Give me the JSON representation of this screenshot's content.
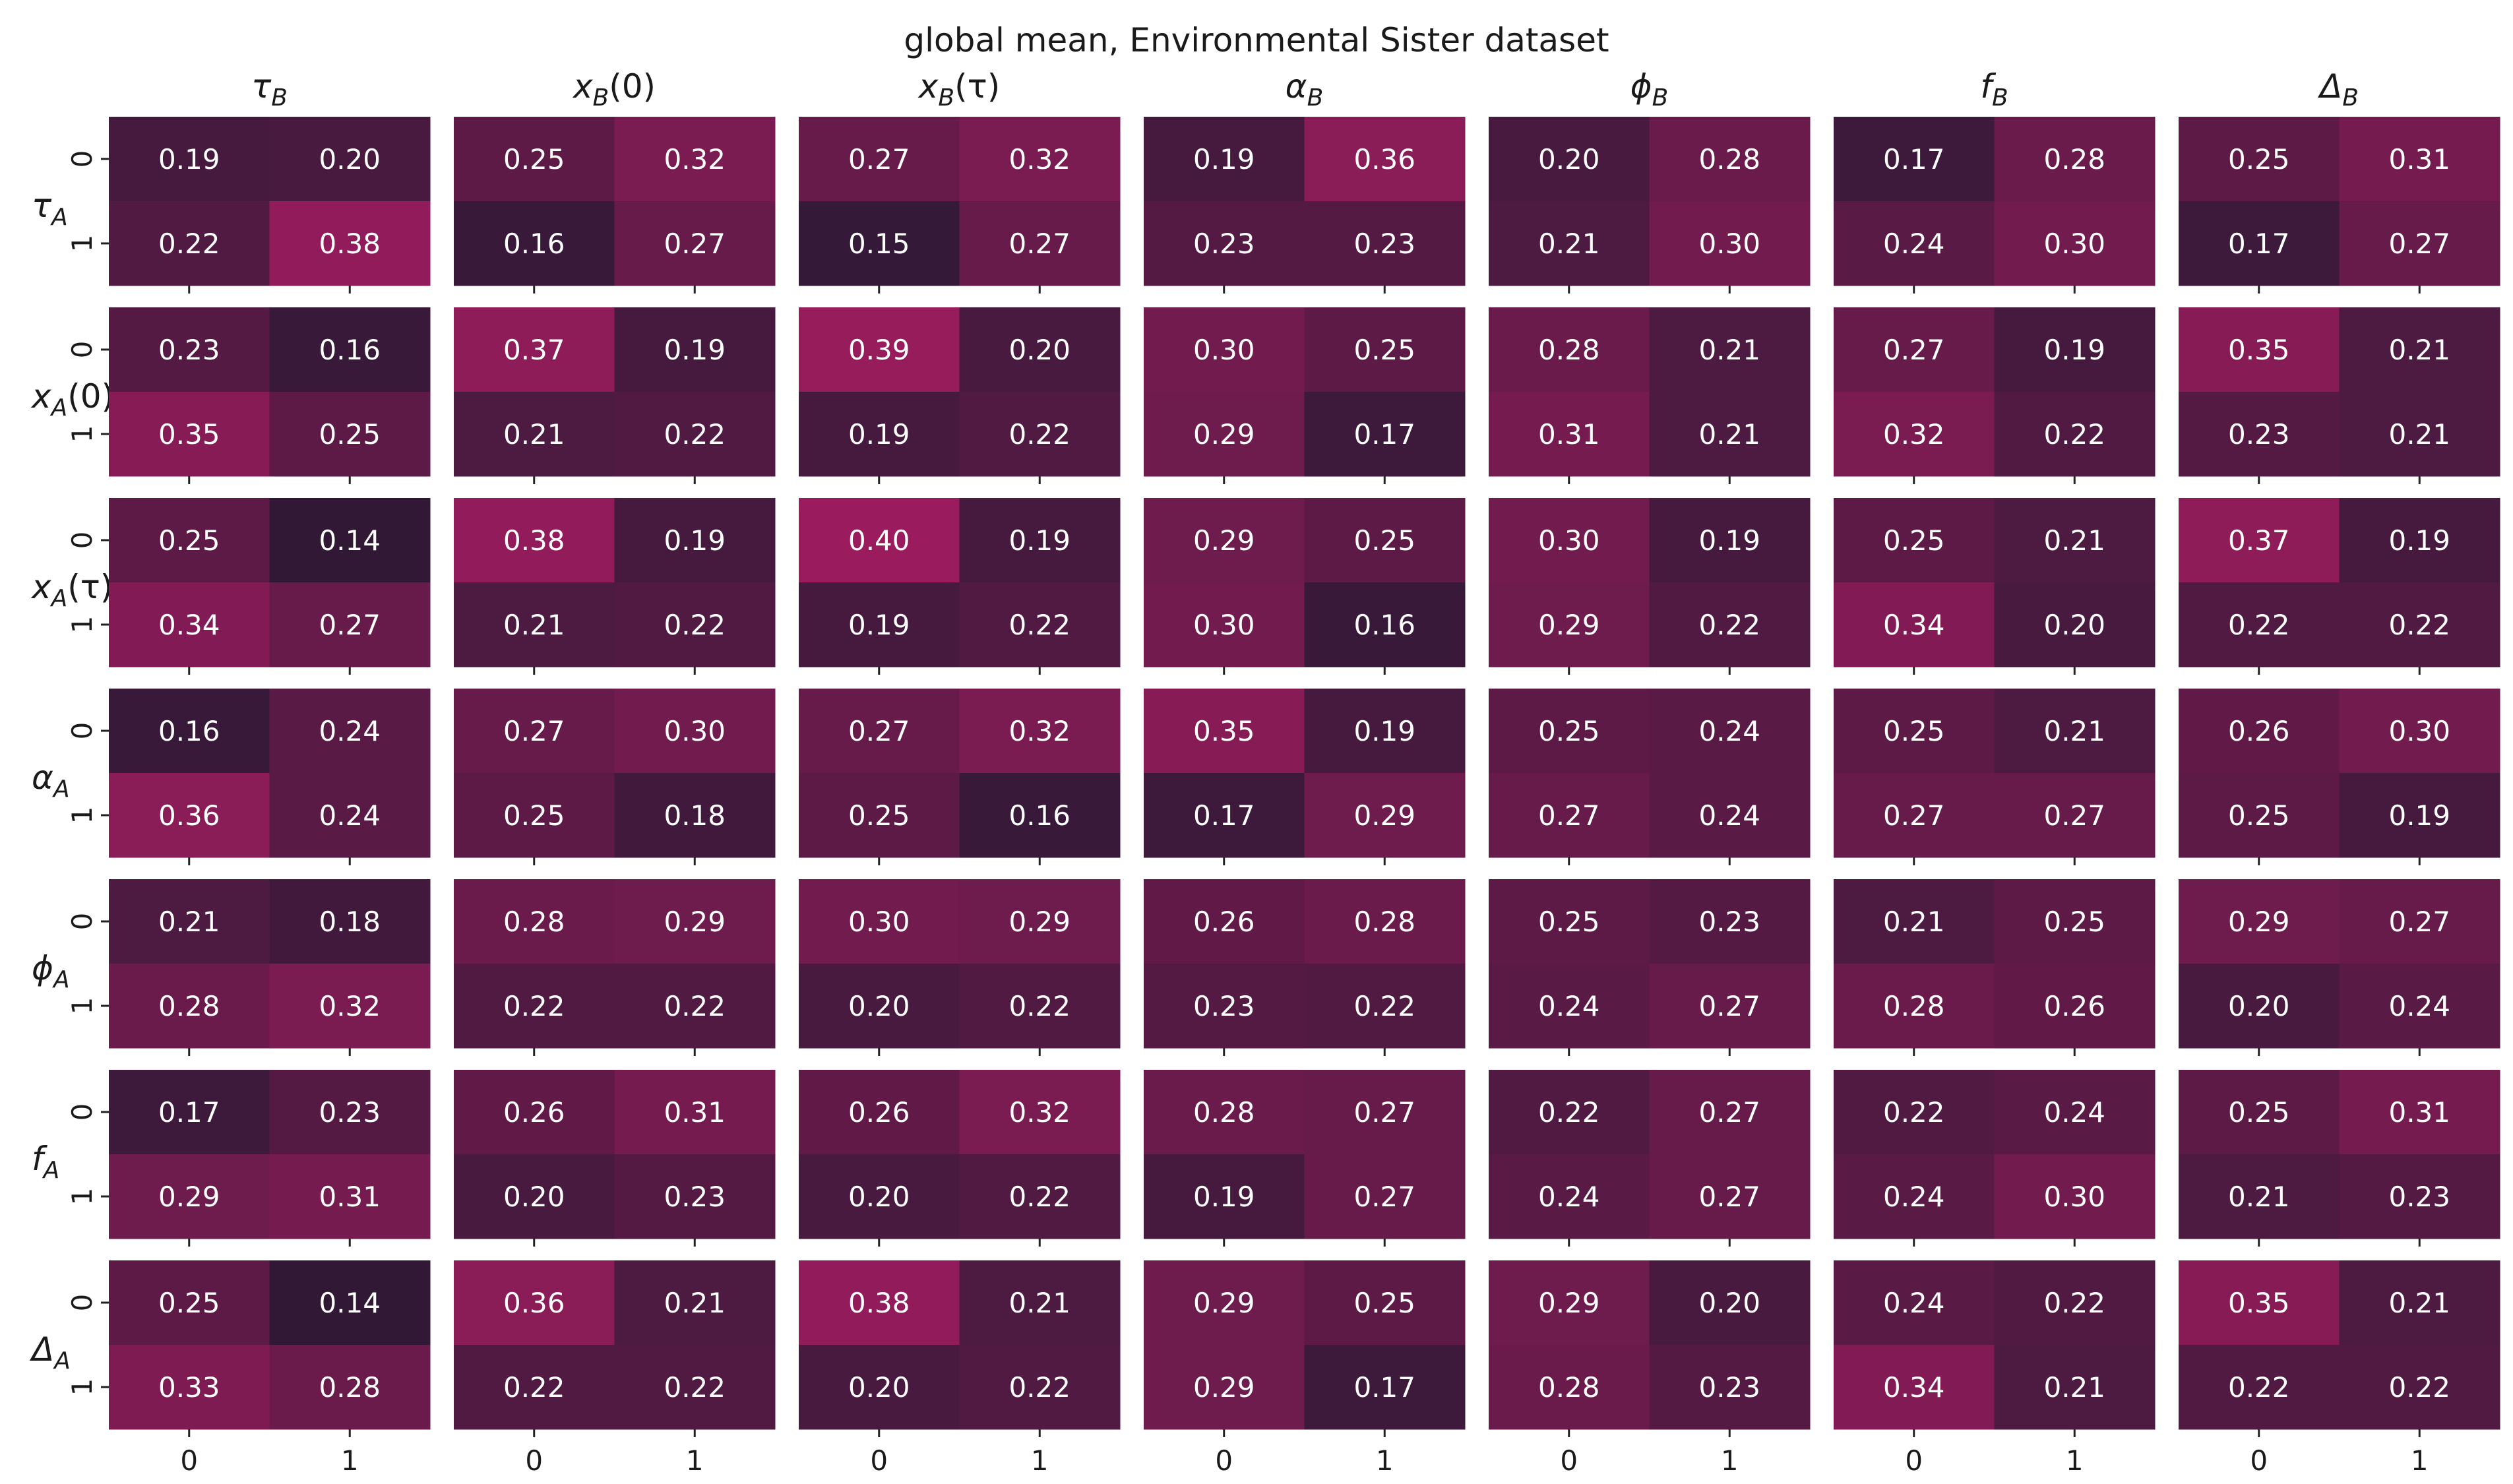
{
  "chart_data": {
    "type": "heatmap",
    "title": "global mean, Environmental Sister dataset",
    "col_titles": [
      "τ",
      "x",
      "x",
      "α",
      "ϕ",
      "f",
      "Δ"
    ],
    "col_title_sub": [
      "B",
      "B",
      "B",
      "B",
      "B",
      "B",
      "B"
    ],
    "col_title_suffix": [
      "",
      "(0)",
      "(τ)",
      "",
      "",
      "",
      ""
    ],
    "row_titles": [
      "τ",
      "x",
      "x",
      "α",
      "ϕ",
      "f",
      "Δ"
    ],
    "row_title_sub": [
      "A",
      "A",
      "A",
      "A",
      "A",
      "A",
      "A"
    ],
    "row_title_suffix": [
      "",
      "(0)",
      "(τ)",
      "",
      "",
      "",
      ""
    ],
    "x_tick_labels": [
      "0",
      "1"
    ],
    "y_tick_labels": [
      "0",
      "1"
    ],
    "value_range": [
      0.14,
      0.4
    ],
    "colormap": {
      "low": "#311936",
      "high": "#9a1c5e"
    },
    "grids": [
      [
        [
          [
            0.19,
            0.2
          ],
          [
            0.22,
            0.38
          ]
        ],
        [
          [
            0.25,
            0.32
          ],
          [
            0.16,
            0.27
          ]
        ],
        [
          [
            0.27,
            0.32
          ],
          [
            0.15,
            0.27
          ]
        ],
        [
          [
            0.19,
            0.36
          ],
          [
            0.23,
            0.23
          ]
        ],
        [
          [
            0.2,
            0.28
          ],
          [
            0.21,
            0.3
          ]
        ],
        [
          [
            0.17,
            0.28
          ],
          [
            0.24,
            0.3
          ]
        ],
        [
          [
            0.25,
            0.31
          ],
          [
            0.17,
            0.27
          ]
        ]
      ],
      [
        [
          [
            0.23,
            0.16
          ],
          [
            0.35,
            0.25
          ]
        ],
        [
          [
            0.37,
            0.19
          ],
          [
            0.21,
            0.22
          ]
        ],
        [
          [
            0.39,
            0.2
          ],
          [
            0.19,
            0.22
          ]
        ],
        [
          [
            0.3,
            0.25
          ],
          [
            0.29,
            0.17
          ]
        ],
        [
          [
            0.28,
            0.21
          ],
          [
            0.31,
            0.21
          ]
        ],
        [
          [
            0.27,
            0.19
          ],
          [
            0.32,
            0.22
          ]
        ],
        [
          [
            0.35,
            0.21
          ],
          [
            0.23,
            0.21
          ]
        ]
      ],
      [
        [
          [
            0.25,
            0.14
          ],
          [
            0.34,
            0.27
          ]
        ],
        [
          [
            0.38,
            0.19
          ],
          [
            0.21,
            0.22
          ]
        ],
        [
          [
            0.4,
            0.19
          ],
          [
            0.19,
            0.22
          ]
        ],
        [
          [
            0.29,
            0.25
          ],
          [
            0.3,
            0.16
          ]
        ],
        [
          [
            0.3,
            0.19
          ],
          [
            0.29,
            0.22
          ]
        ],
        [
          [
            0.25,
            0.21
          ],
          [
            0.34,
            0.2
          ]
        ],
        [
          [
            0.37,
            0.19
          ],
          [
            0.22,
            0.22
          ]
        ]
      ],
      [
        [
          [
            0.16,
            0.24
          ],
          [
            0.36,
            0.24
          ]
        ],
        [
          [
            0.27,
            0.3
          ],
          [
            0.25,
            0.18
          ]
        ],
        [
          [
            0.27,
            0.32
          ],
          [
            0.25,
            0.16
          ]
        ],
        [
          [
            0.35,
            0.19
          ],
          [
            0.17,
            0.29
          ]
        ],
        [
          [
            0.25,
            0.24
          ],
          [
            0.27,
            0.24
          ]
        ],
        [
          [
            0.25,
            0.21
          ],
          [
            0.27,
            0.27
          ]
        ],
        [
          [
            0.26,
            0.3
          ],
          [
            0.25,
            0.19
          ]
        ]
      ],
      [
        [
          [
            0.21,
            0.18
          ],
          [
            0.28,
            0.32
          ]
        ],
        [
          [
            0.28,
            0.29
          ],
          [
            0.22,
            0.22
          ]
        ],
        [
          [
            0.3,
            0.29
          ],
          [
            0.2,
            0.22
          ]
        ],
        [
          [
            0.26,
            0.28
          ],
          [
            0.23,
            0.22
          ]
        ],
        [
          [
            0.25,
            0.23
          ],
          [
            0.24,
            0.27
          ]
        ],
        [
          [
            0.21,
            0.25
          ],
          [
            0.28,
            0.26
          ]
        ],
        [
          [
            0.29,
            0.27
          ],
          [
            0.2,
            0.24
          ]
        ]
      ],
      [
        [
          [
            0.17,
            0.23
          ],
          [
            0.29,
            0.31
          ]
        ],
        [
          [
            0.26,
            0.31
          ],
          [
            0.2,
            0.23
          ]
        ],
        [
          [
            0.26,
            0.32
          ],
          [
            0.2,
            0.22
          ]
        ],
        [
          [
            0.28,
            0.27
          ],
          [
            0.19,
            0.27
          ]
        ],
        [
          [
            0.22,
            0.27
          ],
          [
            0.24,
            0.27
          ]
        ],
        [
          [
            0.22,
            0.24
          ],
          [
            0.24,
            0.3
          ]
        ],
        [
          [
            0.25,
            0.31
          ],
          [
            0.21,
            0.23
          ]
        ]
      ],
      [
        [
          [
            0.25,
            0.14
          ],
          [
            0.33,
            0.28
          ]
        ],
        [
          [
            0.36,
            0.21
          ],
          [
            0.22,
            0.22
          ]
        ],
        [
          [
            0.38,
            0.21
          ],
          [
            0.2,
            0.22
          ]
        ],
        [
          [
            0.29,
            0.25
          ],
          [
            0.29,
            0.17
          ]
        ],
        [
          [
            0.29,
            0.2
          ],
          [
            0.28,
            0.23
          ]
        ],
        [
          [
            0.24,
            0.22
          ],
          [
            0.34,
            0.21
          ]
        ],
        [
          [
            0.35,
            0.21
          ],
          [
            0.22,
            0.22
          ]
        ]
      ]
    ]
  }
}
